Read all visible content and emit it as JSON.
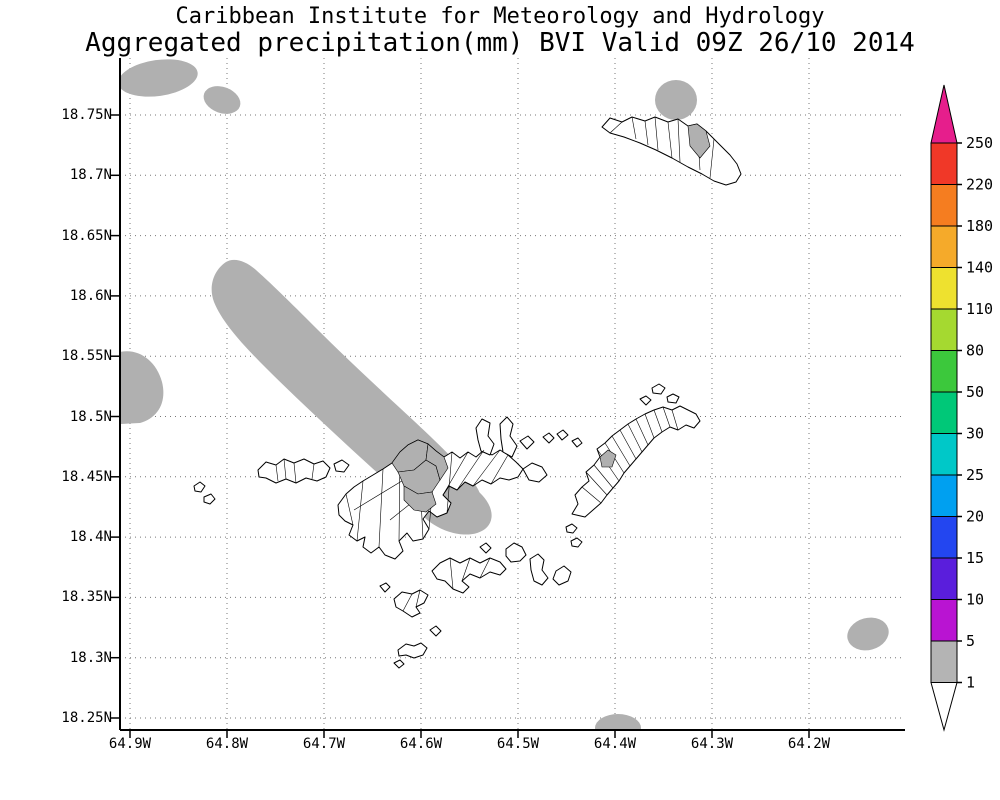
{
  "header": {
    "title_line1": "Caribbean Institute for Meteorology and Hydrology",
    "title_line2": "Aggregated precipitation(mm) BVI Valid 09Z 26/10 2014"
  },
  "axes": {
    "lat_ticks": [
      "18.75N",
      "18.7N",
      "18.65N",
      "18.6N",
      "18.55N",
      "18.5N",
      "18.45N",
      "18.4N",
      "18.35N",
      "18.3N",
      "18.25N"
    ],
    "lon_ticks": [
      "64.9W",
      "64.8W",
      "64.7W",
      "64.6W",
      "64.5W",
      "64.4W",
      "64.3W",
      "64.2W"
    ]
  },
  "colorbar": {
    "labels_top_to_bottom": [
      "250",
      "220",
      "180",
      "140",
      "110",
      "80",
      "50",
      "30",
      "25",
      "20",
      "15",
      "10",
      "5",
      "1"
    ],
    "segment_colors_top_to_bottom": [
      "#f03828",
      "#f57d20",
      "#f5aa2a",
      "#eee12f",
      "#a5d930",
      "#3cc83c",
      "#00c878",
      "#00c8c8",
      "#00a0f0",
      "#2346f0",
      "#5a1edc",
      "#b914d2",
      "#b4b4b4"
    ],
    "above_max_color": "#e61e8c",
    "below_min_color": "#ffffff"
  },
  "map": {
    "shade_color": "#b0b0b0"
  }
}
